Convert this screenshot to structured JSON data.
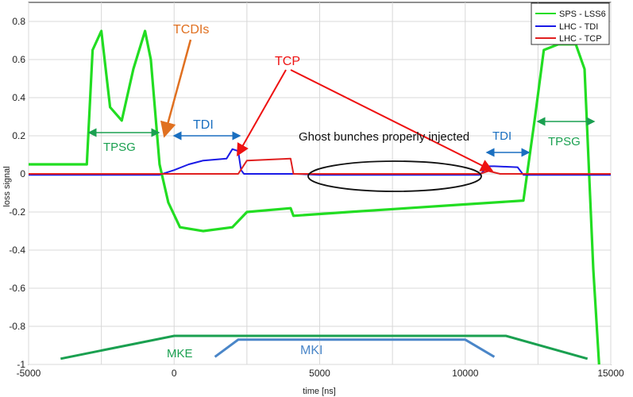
{
  "chart_data": {
    "type": "line",
    "title": "",
    "xlabel": "time [ns]",
    "ylabel": "loss signal",
    "xlim": [
      -5000,
      15000
    ],
    "ylim": [
      -1,
      0.9
    ],
    "x_ticks": [
      -5000,
      0,
      5000,
      10000,
      15000
    ],
    "x_tick_labels": [
      "-5000",
      "0",
      "5000",
      "10000",
      "15000"
    ],
    "y_ticks": [
      -1,
      -0.8,
      -0.6,
      -0.4,
      -0.2,
      0,
      0.2,
      0.4,
      0.6,
      0.8
    ],
    "y_tick_labels": [
      "-1",
      "-0.8",
      "-0.6",
      "-0.4",
      "-0.2",
      "0",
      "0.2",
      "0.4",
      "0.6",
      "0.8"
    ],
    "grid": true,
    "legend_position": "top-right",
    "series": [
      {
        "name": "SPS - LSS6",
        "color": "#22dd22",
        "x": [
          -5000,
          -3000,
          -2800,
          -2500,
          -2200,
          -1800,
          -1400,
          -1000,
          -800,
          -500,
          -200,
          200,
          1000,
          2000,
          2500,
          4000,
          4100,
          6000,
          8000,
          10000,
          12000,
          12400,
          12700,
          13200,
          13800,
          14100,
          14400,
          14600
        ],
        "y": [
          0.05,
          0.05,
          0.65,
          0.75,
          0.35,
          0.28,
          0.55,
          0.75,
          0.6,
          0.05,
          -0.15,
          -0.28,
          -0.3,
          -0.28,
          -0.2,
          -0.18,
          -0.22,
          -0.2,
          -0.18,
          -0.16,
          -0.14,
          0.3,
          0.65,
          0.68,
          0.68,
          0.55,
          -0.5,
          -1
        ]
      },
      {
        "name": "LHC - TDI",
        "color": "#1a1ae6",
        "x": [
          -5000,
          -500,
          0,
          500,
          1000,
          1800,
          2000,
          2200,
          2300,
          2400,
          3000,
          4200,
          5000,
          8000,
          10500,
          10800,
          11000,
          11800,
          12000,
          15000
        ],
        "y": [
          -0.005,
          -0.005,
          0.02,
          0.05,
          0.07,
          0.08,
          0.13,
          0.12,
          0.02,
          0.0,
          0.0,
          0.0,
          -0.005,
          -0.005,
          -0.005,
          0.04,
          0.04,
          0.035,
          -0.005,
          -0.005
        ]
      },
      {
        "name": "LHC - TCP",
        "color": "#e02020",
        "x": [
          -5000,
          2200,
          2500,
          4000,
          4100,
          10500,
          10800,
          11200,
          15000
        ],
        "y": [
          0.0,
          0.0,
          0.07,
          0.08,
          0.0,
          0.0,
          0.015,
          0.0,
          0.0
        ]
      }
    ],
    "annotations": [
      {
        "text": "TCDIs",
        "color": "#e07020"
      },
      {
        "text": "TCP",
        "color": "#ee1111"
      },
      {
        "text": "TDI",
        "color": "#1a6fc0"
      },
      {
        "text": "TDI",
        "color": "#1a6fc0"
      },
      {
        "text": "TPSG",
        "color": "#1aa050"
      },
      {
        "text": "TPSG",
        "color": "#1aa050"
      },
      {
        "text": "Ghost bunches properly injected",
        "color": "#111111"
      },
      {
        "text": "MKE",
        "color": "#1aa050"
      },
      {
        "text": "MKI",
        "color": "#1a6fc0"
      }
    ],
    "kicker_waveforms": [
      {
        "name": "MKE",
        "color": "#1aa050",
        "x": [
          -3900,
          0,
          11400,
          14200
        ],
        "y": [
          -0.97,
          -0.85,
          -0.85,
          -0.97
        ]
      },
      {
        "name": "MKI",
        "color": "#4a86c8",
        "x": [
          1400,
          2200,
          10000,
          11000
        ],
        "y": [
          -0.96,
          -0.87,
          -0.87,
          -0.96
        ]
      }
    ]
  }
}
